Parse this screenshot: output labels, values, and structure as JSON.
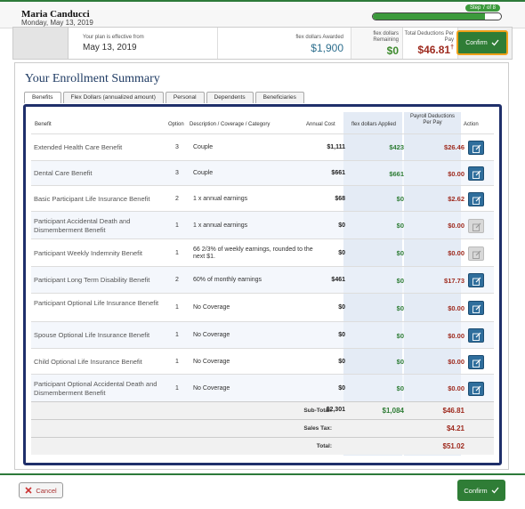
{
  "header": {
    "user_name": "Maria Canducci",
    "date": "Monday, May 13, 2019",
    "step_label": "Step 7 of 8",
    "progress": 0.875
  },
  "summary": {
    "plan_label": "Your plan is effective from",
    "plan_date": "May 13, 2019",
    "awarded_label": "flex dollars Awarded",
    "awarded_value": "$1,900",
    "remaining_label": "flex dollars Remaining",
    "remaining_value": "$0",
    "deductions_label": "Total Deductions Per Pay",
    "deductions_value": "$46.81",
    "deductions_marker": "†",
    "confirm_label": "Confirm"
  },
  "heading": "Your Enrollment Summary",
  "tabs": [
    {
      "label": "Benefits",
      "active": true
    },
    {
      "label": "Flex Dollars (annualized amount)",
      "active": false
    },
    {
      "label": "Personal",
      "active": false
    },
    {
      "label": "Dependents",
      "active": false
    },
    {
      "label": "Beneficiaries",
      "active": false
    }
  ],
  "table": {
    "headers": {
      "benefit": "Benefit",
      "option": "Option",
      "description": "Description / Coverage / Category",
      "cost": "Annual Cost",
      "applied": "flex dollars Applied",
      "payroll": "Payroll Deductions Per Pay",
      "action": "Action"
    },
    "rows": [
      {
        "benefit": "Extended Health Care Benefit",
        "option": "3",
        "description": "Couple",
        "cost": "$1,111",
        "applied": "$423",
        "payroll": "$26.46",
        "editable": true
      },
      {
        "benefit": "Dental Care Benefit",
        "option": "3",
        "description": "Couple",
        "cost": "$661",
        "applied": "$661",
        "payroll": "$0.00",
        "editable": true
      },
      {
        "benefit": "Basic Participant Life Insurance Benefit",
        "option": "2",
        "description": "1 x annual earnings",
        "cost": "$68",
        "applied": "$0",
        "payroll": "$2.62",
        "editable": true
      },
      {
        "benefit": "Participant Accidental Death and Dismemberment Benefit",
        "option": "1",
        "description": "1 x annual earnings",
        "cost": "$0",
        "applied": "$0",
        "payroll": "$0.00",
        "editable": false
      },
      {
        "benefit": "Participant Weekly Indemnity Benefit",
        "option": "1",
        "description": "66 2/3% of weekly earnings, rounded to the next $1.",
        "cost": "$0",
        "applied": "$0",
        "payroll": "$0.00",
        "editable": false
      },
      {
        "benefit": "Participant Long Term Disability Benefit",
        "option": "2",
        "description": "60% of monthly earnings",
        "cost": "$461",
        "applied": "$0",
        "payroll": "$17.73",
        "editable": true
      },
      {
        "benefit": "Participant Optional Life Insurance Benefit",
        "option": "1",
        "description": "No Coverage",
        "cost": "$0",
        "applied": "$0",
        "payroll": "$0.00",
        "editable": true
      },
      {
        "benefit": "Spouse Optional Life Insurance Benefit",
        "option": "1",
        "description": "No Coverage",
        "cost": "$0",
        "applied": "$0",
        "payroll": "$0.00",
        "editable": true
      },
      {
        "benefit": "Child Optional Life Insurance Benefit",
        "option": "1",
        "description": "No Coverage",
        "cost": "$0",
        "applied": "$0",
        "payroll": "$0.00",
        "editable": true
      },
      {
        "benefit": "Participant Optional Accidental Death and Dismemberment Benefit",
        "option": "1",
        "description": "No Coverage",
        "cost": "$0",
        "applied": "$0",
        "payroll": "$0.00",
        "editable": true
      }
    ],
    "subtotal": {
      "label": "Sub-Total:",
      "cost": "$2,301",
      "applied": "$1,084",
      "payroll": "$46.81"
    },
    "sales_tax": {
      "label": "Sales Tax:",
      "payroll": "$4.21"
    },
    "total": {
      "label": "Total:",
      "payroll": "$51.02"
    }
  },
  "footer": {
    "cancel_label": "Cancel",
    "confirm_label": "Confirm"
  },
  "colors": {
    "accent_green": "#2f7d36",
    "navy": "#1f2f6a",
    "deduction_red": "#9e2a1e",
    "highlight_orange": "#f0a018"
  }
}
